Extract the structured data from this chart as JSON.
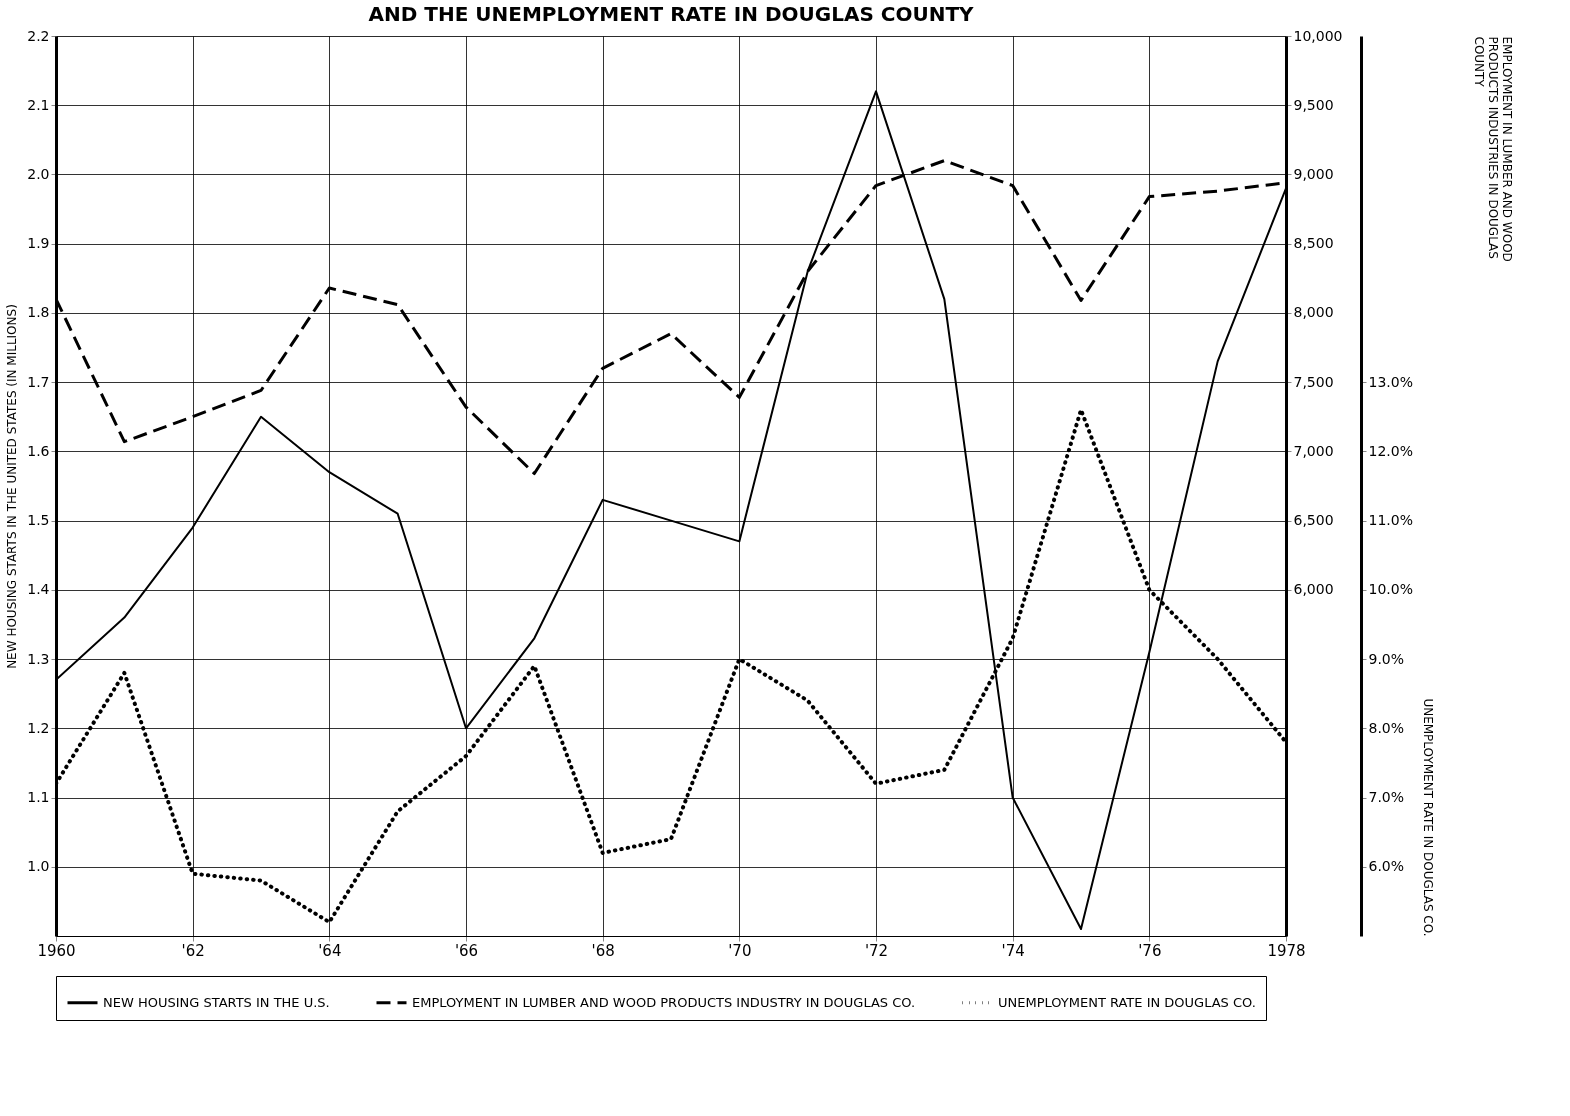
{
  "chart_data": {
    "type": "line",
    "title": "AND THE UNEMPLOYMENT RATE IN DOUGLAS COUNTY",
    "ylabel": "NEW HOUSING STARTS IN THE UNITED STATES (IN MILLIONS)",
    "y2label": "EMPLOYMENT IN LUMBER AND WOOD PRODUCTS INDUSTRIES IN DOUGLAS COUNTY",
    "y3label": "UNEMPLOYMENT RATE IN DOUGLAS CO.",
    "x": [
      1960,
      1961,
      1962,
      1963,
      1964,
      1965,
      1966,
      1967,
      1968,
      1969,
      1970,
      1971,
      1972,
      1973,
      1974,
      1975,
      1976,
      1977,
      1978
    ],
    "xlim": [
      1960,
      1978
    ],
    "xticks": [
      1960,
      {
        "value": 1962,
        "label": "'62"
      },
      {
        "value": 1964,
        "label": "'64"
      },
      {
        "value": 1966,
        "label": "'66"
      },
      {
        "value": 1968,
        "label": "'68"
      },
      {
        "value": 1970,
        "label": "'70"
      },
      {
        "value": 1972,
        "label": "'72"
      },
      {
        "value": 1974,
        "label": "'74"
      },
      {
        "value": 1976,
        "label": "'76"
      },
      1978
    ],
    "ylim": [
      0.9,
      2.2
    ],
    "yticks": [
      {
        "value": 1.0,
        "label": "1.0"
      },
      1.1,
      1.2,
      1.3,
      1.4,
      1.5,
      1.6,
      1.7,
      1.8,
      1.9,
      {
        "value": 2.0,
        "label": "2.0"
      },
      2.1,
      2.2
    ],
    "y2lim": [
      3500,
      10000
    ],
    "y2ticks": [
      {
        "value": 6000,
        "label": "6,000"
      },
      {
        "value": 6500,
        "label": "6,500"
      },
      {
        "value": 7000,
        "label": "7,000"
      },
      {
        "value": 7500,
        "label": "7,500"
      },
      {
        "value": 8000,
        "label": "8,000"
      },
      {
        "value": 8500,
        "label": "8,500"
      },
      {
        "value": 9000,
        "label": "9,000"
      },
      {
        "value": 9500,
        "label": "9,500"
      },
      {
        "value": 10000,
        "label": "10,000"
      }
    ],
    "y3lim": [
      5,
      18
    ],
    "y3ticks": [
      {
        "value": 6,
        "label": "6.0%"
      },
      {
        "value": 7,
        "label": "7.0%"
      },
      {
        "value": 8,
        "label": "8.0%"
      },
      {
        "value": 9,
        "label": "9.0%"
      },
      {
        "value": 10,
        "label": "10.0%"
      },
      {
        "value": 11,
        "label": "11.0%"
      },
      {
        "value": 12,
        "label": "12.0%"
      },
      {
        "value": 13,
        "label": "13.0%"
      }
    ],
    "grid": true,
    "legend": "bottom",
    "series": [
      {
        "name": "NEW HOUSING STARTS IN THE U.S.",
        "color": "#000000",
        "line_style": "solid",
        "values": [
          1.27,
          1.36,
          1.49,
          1.65,
          1.57,
          1.51,
          1.2,
          1.33,
          1.53,
          1.5,
          1.47,
          1.86,
          2.12,
          1.82,
          1.1,
          0.91,
          1.31,
          1.73,
          1.98
        ]
      },
      {
        "name": "EMPLOYMENT IN LUMBER AND WOOD PRODUCTS INDUSTRY IN DOUGLAS CO.",
        "color": "#000000",
        "line_style": "dashed",
        "axis": "y2",
        "values": [
          8100,
          7070,
          7250,
          7440,
          8180,
          8060,
          7320,
          6840,
          7600,
          7850,
          7390,
          8300,
          8920,
          9100,
          8920,
          8090,
          8840,
          8880,
          8940
        ]
      },
      {
        "name": "UNEMPLOYMENT RATE IN DOUGLAS CO.",
        "color": "#000000",
        "line_style": "dotted",
        "axis": "y3",
        "values": [
          7.2,
          8.8,
          5.9,
          5.8,
          5.2,
          6.8,
          7.6,
          8.9,
          6.2,
          6.4,
          9.0,
          8.4,
          7.2,
          7.4,
          9.3,
          12.6,
          10.0,
          9.0,
          7.8
        ]
      }
    ]
  }
}
